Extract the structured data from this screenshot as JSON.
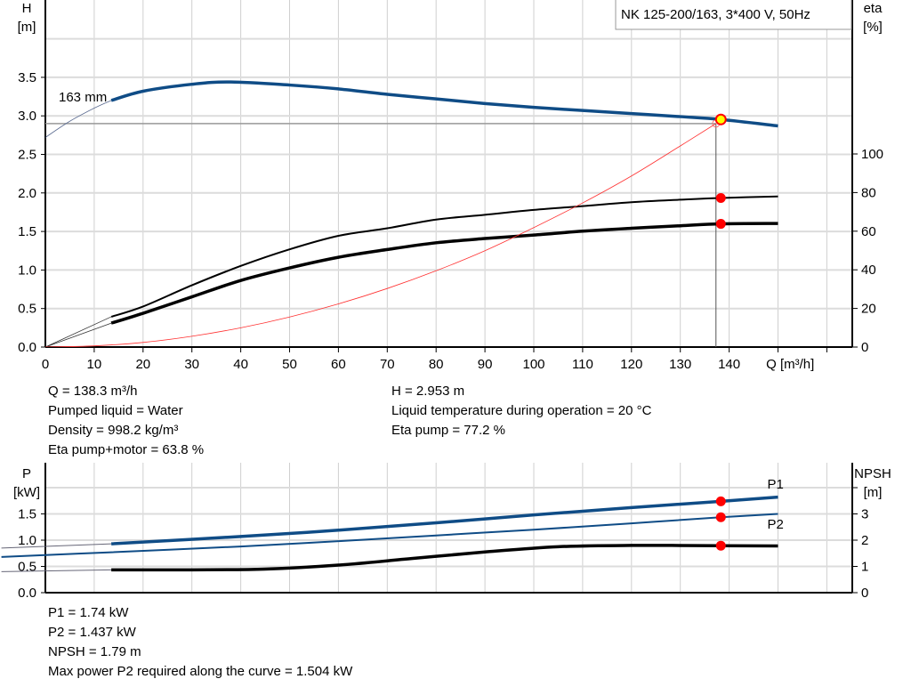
{
  "chart_data": [
    {
      "type": "line",
      "title": "NK 125-200/163, 3*400 V, 50Hz",
      "xlabel": "Q [m³/h]",
      "ylabel_left": [
        "H",
        "[m]"
      ],
      "ylabel_right": [
        "eta",
        "[%]"
      ],
      "xlim": [
        0,
        165
      ],
      "ylim_left": [
        0,
        4.5
      ],
      "ylim_right": [
        0,
        207
      ],
      "x_ticks": [
        0,
        10,
        20,
        30,
        40,
        50,
        60,
        70,
        80,
        90,
        100,
        110,
        120,
        130,
        140
      ],
      "y_ticks_left": [
        "0.0",
        "0.5",
        "1.0",
        "1.5",
        "2.0",
        "2.5",
        "3.0",
        "3.5"
      ],
      "y_ticks_right": [
        "0",
        "20",
        "40",
        "60",
        "80",
        "100"
      ],
      "grid": true,
      "curve_label": "163 mm",
      "series": [
        {
          "axis": "left",
          "color": "#0f4c86",
          "kind": "head",
          "x": [
            13.5,
            20,
            30,
            38,
            50,
            60,
            70,
            80,
            90,
            100,
            110,
            120,
            130,
            138.3,
            150
          ],
          "y": [
            3.2,
            3.32,
            3.41,
            3.44,
            3.4,
            3.35,
            3.28,
            3.22,
            3.16,
            3.11,
            3.07,
            3.03,
            2.99,
            2.953,
            2.87
          ],
          "ext_x": [
            0,
            5,
            10,
            13.5
          ],
          "ext_y": [
            2.72,
            2.93,
            3.1,
            3.2
          ]
        },
        {
          "axis": "right",
          "color": "#000000",
          "kind": "eta_pump",
          "x": [
            13.5,
            20,
            30,
            40,
            50,
            60,
            70,
            80,
            90,
            100,
            110,
            120,
            130,
            138.3,
            150
          ],
          "y": [
            15.7,
            21,
            32,
            42,
            50.6,
            57.6,
            61.5,
            66,
            68.5,
            71,
            73,
            75,
            76.3,
            77.2,
            78
          ]
        },
        {
          "axis": "right",
          "color": "#000000",
          "kind": "eta_pump_motor",
          "x": [
            13.5,
            20,
            30,
            40,
            50,
            60,
            70,
            80,
            90,
            100,
            110,
            120,
            130,
            138.3,
            150
          ],
          "y": [
            12.4,
            17.5,
            26,
            34.5,
            41,
            46.5,
            50.5,
            54,
            56.2,
            58,
            60,
            61.5,
            62.8,
            63.8,
            64
          ]
        },
        {
          "axis": "left",
          "color": "#ff3030",
          "kind": "system",
          "x": [
            0,
            10,
            20,
            30,
            40,
            50,
            60,
            70,
            80,
            90,
            100,
            110,
            120,
            130,
            137.3
          ],
          "y": [
            0,
            0.015,
            0.06,
            0.14,
            0.25,
            0.39,
            0.56,
            0.76,
            0.99,
            1.25,
            1.55,
            1.87,
            2.22,
            2.61,
            2.9
          ]
        }
      ],
      "operating_point": {
        "q": 138.3,
        "h": 2.953,
        "eta_pump": 77.2,
        "eta_pump_motor": 63.8
      },
      "ref_line_h": 2.9,
      "ref_line_q": 137.3
    },
    {
      "type": "line",
      "ylabel_left": [
        "P",
        "[kW]"
      ],
      "ylabel_right": [
        "NPSH",
        "[m]"
      ],
      "xlim": [
        0,
        165
      ],
      "ylim_left": [
        0,
        2.5
      ],
      "ylim_right": [
        0,
        5
      ],
      "y_ticks_left": [
        "0.0",
        "0.5",
        "1.0",
        "1.5"
      ],
      "y_ticks_right": [
        "0",
        "1",
        "2",
        "3"
      ],
      "grid": true,
      "series": [
        {
          "name": "P1",
          "axis": "left",
          "color": "#0f4c86",
          "x": [
            13.5,
            40,
            60,
            80,
            100,
            120,
            138.3,
            150
          ],
          "y": [
            0.93,
            1.07,
            1.19,
            1.33,
            1.48,
            1.62,
            1.74,
            1.82
          ],
          "ext_x": [
            -9,
            13.5
          ],
          "ext_y": [
            0.85,
            0.93
          ]
        },
        {
          "name": "P2",
          "axis": "left",
          "color": "#0f4c86",
          "x": [
            -9,
            13.5,
            40,
            60,
            80,
            100,
            120,
            138.3,
            150
          ],
          "y": [
            0.68,
            0.77,
            0.88,
            0.98,
            1.09,
            1.2,
            1.32,
            1.437,
            1.5
          ]
        },
        {
          "axis": "right",
          "color": "#000000",
          "kind": "npsh",
          "x": [
            13.5,
            30,
            45,
            60,
            75,
            90,
            105,
            120,
            138.3,
            150
          ],
          "y": [
            0.87,
            0.87,
            0.9,
            1.05,
            1.3,
            1.55,
            1.75,
            1.8,
            1.79,
            1.78
          ],
          "ext_x": [
            -9,
            13.5
          ],
          "ext_y": [
            0.8,
            0.87
          ]
        }
      ],
      "operating_point": {
        "q": 138.3,
        "p1": 1.74,
        "p2": 1.437,
        "npsh": 1.79
      }
    }
  ],
  "info_top_left": [
    "Q = 138.3 m³/h",
    "Pumped liquid = Water",
    "Density = 998.2 kg/m³",
    "Eta pump+motor = 63.8 %"
  ],
  "info_top_right": [
    "H = 2.953 m",
    "Liquid temperature during operation = 20 °C",
    "Eta pump = 77.2 %"
  ],
  "info_bottom": [
    "P1 = 1.74 kW",
    "P2 = 1.437 kW",
    "NPSH = 1.79 m",
    "Max power P2 required along the curve = 1.504 kW"
  ]
}
